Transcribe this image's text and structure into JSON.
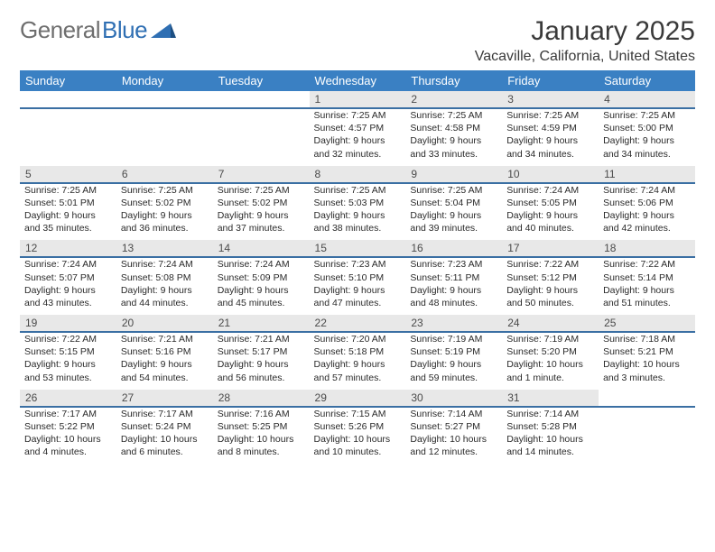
{
  "brand": {
    "part1": "General",
    "part2": "Blue"
  },
  "title": "January 2025",
  "location": "Vacaville, California, United States",
  "colors": {
    "header_bg": "#3a80c3",
    "header_text": "#ffffff",
    "rule": "#3a6fa3",
    "daynum_bg": "#e8e8e8",
    "text": "#2a2a2a",
    "logo_gray": "#6e6e6e",
    "logo_blue": "#2f6fb3"
  },
  "day_headers": [
    "Sunday",
    "Monday",
    "Tuesday",
    "Wednesday",
    "Thursday",
    "Friday",
    "Saturday"
  ],
  "weeks": [
    [
      null,
      null,
      null,
      {
        "n": "1",
        "sr": "7:25 AM",
        "ss": "4:57 PM",
        "dl": "9 hours and 32 minutes."
      },
      {
        "n": "2",
        "sr": "7:25 AM",
        "ss": "4:58 PM",
        "dl": "9 hours and 33 minutes."
      },
      {
        "n": "3",
        "sr": "7:25 AM",
        "ss": "4:59 PM",
        "dl": "9 hours and 34 minutes."
      },
      {
        "n": "4",
        "sr": "7:25 AM",
        "ss": "5:00 PM",
        "dl": "9 hours and 34 minutes."
      }
    ],
    [
      {
        "n": "5",
        "sr": "7:25 AM",
        "ss": "5:01 PM",
        "dl": "9 hours and 35 minutes."
      },
      {
        "n": "6",
        "sr": "7:25 AM",
        "ss": "5:02 PM",
        "dl": "9 hours and 36 minutes."
      },
      {
        "n": "7",
        "sr": "7:25 AM",
        "ss": "5:02 PM",
        "dl": "9 hours and 37 minutes."
      },
      {
        "n": "8",
        "sr": "7:25 AM",
        "ss": "5:03 PM",
        "dl": "9 hours and 38 minutes."
      },
      {
        "n": "9",
        "sr": "7:25 AM",
        "ss": "5:04 PM",
        "dl": "9 hours and 39 minutes."
      },
      {
        "n": "10",
        "sr": "7:24 AM",
        "ss": "5:05 PM",
        "dl": "9 hours and 40 minutes."
      },
      {
        "n": "11",
        "sr": "7:24 AM",
        "ss": "5:06 PM",
        "dl": "9 hours and 42 minutes."
      }
    ],
    [
      {
        "n": "12",
        "sr": "7:24 AM",
        "ss": "5:07 PM",
        "dl": "9 hours and 43 minutes."
      },
      {
        "n": "13",
        "sr": "7:24 AM",
        "ss": "5:08 PM",
        "dl": "9 hours and 44 minutes."
      },
      {
        "n": "14",
        "sr": "7:24 AM",
        "ss": "5:09 PM",
        "dl": "9 hours and 45 minutes."
      },
      {
        "n": "15",
        "sr": "7:23 AM",
        "ss": "5:10 PM",
        "dl": "9 hours and 47 minutes."
      },
      {
        "n": "16",
        "sr": "7:23 AM",
        "ss": "5:11 PM",
        "dl": "9 hours and 48 minutes."
      },
      {
        "n": "17",
        "sr": "7:22 AM",
        "ss": "5:12 PM",
        "dl": "9 hours and 50 minutes."
      },
      {
        "n": "18",
        "sr": "7:22 AM",
        "ss": "5:14 PM",
        "dl": "9 hours and 51 minutes."
      }
    ],
    [
      {
        "n": "19",
        "sr": "7:22 AM",
        "ss": "5:15 PM",
        "dl": "9 hours and 53 minutes."
      },
      {
        "n": "20",
        "sr": "7:21 AM",
        "ss": "5:16 PM",
        "dl": "9 hours and 54 minutes."
      },
      {
        "n": "21",
        "sr": "7:21 AM",
        "ss": "5:17 PM",
        "dl": "9 hours and 56 minutes."
      },
      {
        "n": "22",
        "sr": "7:20 AM",
        "ss": "5:18 PM",
        "dl": "9 hours and 57 minutes."
      },
      {
        "n": "23",
        "sr": "7:19 AM",
        "ss": "5:19 PM",
        "dl": "9 hours and 59 minutes."
      },
      {
        "n": "24",
        "sr": "7:19 AM",
        "ss": "5:20 PM",
        "dl": "10 hours and 1 minute."
      },
      {
        "n": "25",
        "sr": "7:18 AM",
        "ss": "5:21 PM",
        "dl": "10 hours and 3 minutes."
      }
    ],
    [
      {
        "n": "26",
        "sr": "7:17 AM",
        "ss": "5:22 PM",
        "dl": "10 hours and 4 minutes."
      },
      {
        "n": "27",
        "sr": "7:17 AM",
        "ss": "5:24 PM",
        "dl": "10 hours and 6 minutes."
      },
      {
        "n": "28",
        "sr": "7:16 AM",
        "ss": "5:25 PM",
        "dl": "10 hours and 8 minutes."
      },
      {
        "n": "29",
        "sr": "7:15 AM",
        "ss": "5:26 PM",
        "dl": "10 hours and 10 minutes."
      },
      {
        "n": "30",
        "sr": "7:14 AM",
        "ss": "5:27 PM",
        "dl": "10 hours and 12 minutes."
      },
      {
        "n": "31",
        "sr": "7:14 AM",
        "ss": "5:28 PM",
        "dl": "10 hours and 14 minutes."
      },
      null
    ]
  ],
  "labels": {
    "sunrise": "Sunrise: ",
    "sunset": "Sunset: ",
    "daylight": "Daylight: "
  }
}
